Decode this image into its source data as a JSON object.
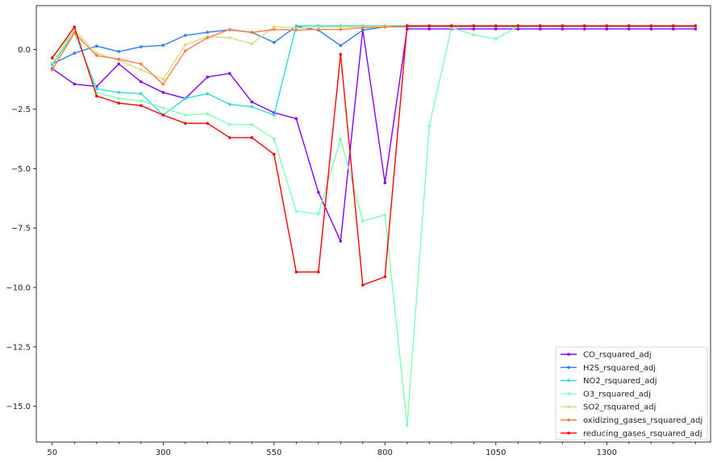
{
  "chart_data": {
    "type": "line",
    "title": "",
    "xlabel": "",
    "ylabel": "",
    "xlim": [
      14,
      1534
    ],
    "ylim": [
      -16.5,
      1.85
    ],
    "x_ticks": [
      50,
      300,
      550,
      800,
      1050,
      1300
    ],
    "x_minor_ticks": [
      100,
      150,
      200,
      250,
      350,
      400,
      450,
      500,
      600,
      650,
      700,
      750,
      850,
      900,
      950,
      1000,
      1100,
      1150,
      1200,
      1250,
      1350,
      1400,
      1450,
      1500
    ],
    "x_tick_labels": [
      "50",
      "300",
      "550",
      "800",
      "1050",
      "1300"
    ],
    "y_ticks": [
      0.0,
      -2.5,
      -5.0,
      -7.5,
      -10.0,
      -12.5,
      -15.0
    ],
    "y_tick_labels": [
      "0.0",
      "−2.5",
      "−5.0",
      "−7.5",
      "−10.0",
      "−12.5",
      "−15.0"
    ],
    "grid": false,
    "legend_position": "lower-right",
    "x": [
      50,
      100,
      150,
      200,
      250,
      300,
      350,
      400,
      450,
      500,
      550,
      600,
      650,
      700,
      750,
      800,
      850,
      900,
      950,
      1000,
      1050,
      1100,
      1150,
      1200,
      1250,
      1300,
      1350,
      1400,
      1450,
      1500
    ],
    "series": [
      {
        "name": "CO_rsquared_adj",
        "color": "#7f00ff",
        "values": [
          -0.8,
          -1.45,
          -1.55,
          -0.6,
          -1.35,
          -1.8,
          -2.05,
          -1.15,
          -1.0,
          -2.2,
          -2.65,
          -2.9,
          -6.0,
          -8.05,
          0.85,
          -5.6,
          0.87,
          0.87,
          0.87,
          0.87,
          0.87,
          0.87,
          0.87,
          0.87,
          0.87,
          0.87,
          0.87,
          0.87,
          0.87,
          0.87
        ]
      },
      {
        "name": "H2S_rsquared_adj",
        "color": "#2c7ef7",
        "values": [
          -0.6,
          -0.15,
          0.15,
          -0.08,
          0.12,
          0.18,
          0.6,
          0.73,
          0.83,
          0.73,
          0.3,
          0.98,
          0.82,
          0.17,
          0.82,
          0.96,
          0.96,
          0.96,
          0.96,
          0.96,
          0.96,
          0.96,
          0.96,
          0.96,
          0.96,
          0.96,
          0.96,
          0.96,
          0.96,
          0.96
        ]
      },
      {
        "name": "NO2_rsquared_adj",
        "color": "#2adddd",
        "values": [
          -0.65,
          0.72,
          -1.65,
          -1.8,
          -1.85,
          -2.75,
          -2.05,
          -1.85,
          -2.3,
          -2.4,
          -2.75,
          1.0,
          1.0,
          1.0,
          1.0,
          1.0,
          1.0,
          1.0,
          1.0,
          1.0,
          1.0,
          1.0,
          1.0,
          1.0,
          1.0,
          1.0,
          1.0,
          1.0,
          1.0,
          1.0
        ]
      },
      {
        "name": "O3_rsquared_adj",
        "color": "#80ffb4",
        "values": [
          -0.3,
          0.8,
          -1.8,
          -2.05,
          -2.15,
          -2.45,
          -2.75,
          -2.7,
          -3.15,
          -3.15,
          -3.75,
          -6.8,
          -6.9,
          -3.75,
          -7.2,
          -6.95,
          -15.8,
          -3.2,
          0.92,
          0.62,
          0.45,
          0.98,
          0.98,
          0.98,
          0.98,
          0.98,
          0.98,
          0.98,
          0.98,
          0.98
        ]
      },
      {
        "name": "SO2_rsquared_adj",
        "color": "#d4dd80",
        "values": [
          -0.55,
          0.82,
          -0.15,
          -0.45,
          -0.85,
          -1.25,
          0.2,
          0.55,
          0.5,
          0.25,
          0.97,
          0.9,
          0.95,
          0.95,
          0.97,
          0.98,
          0.98,
          0.98,
          0.98,
          0.98,
          0.98,
          0.98,
          0.98,
          0.98,
          0.98,
          0.98,
          0.98,
          0.98,
          0.98,
          0.98
        ]
      },
      {
        "name": "oxidizing_gases_rsquared_adj",
        "color": "#ff7e41",
        "values": [
          -0.85,
          0.7,
          -0.25,
          -0.4,
          -0.6,
          -1.45,
          -0.05,
          0.5,
          0.85,
          0.72,
          0.85,
          0.82,
          0.85,
          0.85,
          0.92,
          0.95,
          1.0,
          1.0,
          1.0,
          1.0,
          1.0,
          1.0,
          1.0,
          1.0,
          1.0,
          1.0,
          1.0,
          1.0,
          1.0,
          1.0
        ]
      },
      {
        "name": "reducing_gases_rsquared_adj",
        "color": "#ff0000",
        "values": [
          -0.35,
          0.95,
          -1.95,
          -2.25,
          -2.35,
          -2.75,
          -3.1,
          -3.1,
          -3.7,
          -3.7,
          -4.4,
          -9.35,
          -9.35,
          -0.2,
          -9.9,
          -9.55,
          1.0,
          1.0,
          1.0,
          1.0,
          1.0,
          1.0,
          1.0,
          1.0,
          1.0,
          1.0,
          1.0,
          1.0,
          1.0,
          1.0
        ]
      }
    ]
  }
}
